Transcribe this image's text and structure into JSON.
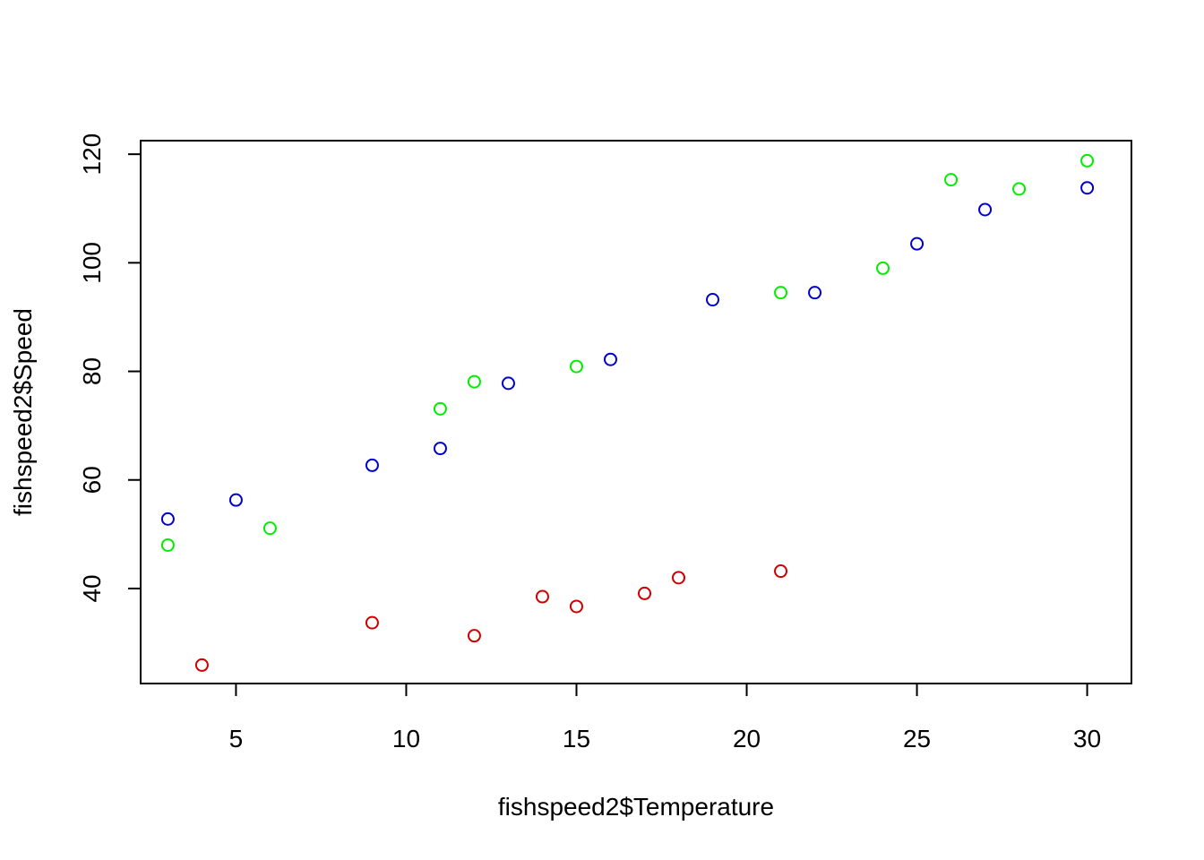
{
  "chart_data": {
    "type": "scatter",
    "title": "",
    "xlabel": "fishspeed2$Temperature",
    "ylabel": "fishspeed2$Speed",
    "xlim": [
      2.2,
      31.3
    ],
    "ylim": [
      22.5,
      122.5
    ],
    "x_ticks": [
      5,
      10,
      15,
      20,
      25,
      30
    ],
    "y_ticks": [
      40,
      60,
      80,
      100,
      120
    ],
    "grid": false,
    "legend": "none",
    "marker": "open-circle",
    "series": [
      {
        "color": "#0000cd",
        "points": [
          [
            3,
            52.8
          ],
          [
            5,
            56.3
          ],
          [
            9,
            62.7
          ],
          [
            11,
            65.8
          ],
          [
            13,
            77.8
          ],
          [
            16,
            82.2
          ],
          [
            19,
            93.2
          ],
          [
            22,
            94.5
          ],
          [
            25,
            103.5
          ],
          [
            27,
            109.8
          ],
          [
            30,
            113.8
          ]
        ]
      },
      {
        "color": "#00ee00",
        "points": [
          [
            3,
            48.0
          ],
          [
            6,
            51.1
          ],
          [
            11,
            73.1
          ],
          [
            12,
            78.1
          ],
          [
            15,
            80.9
          ],
          [
            21,
            94.5
          ],
          [
            24,
            99.0
          ],
          [
            26,
            115.3
          ],
          [
            28,
            113.6
          ],
          [
            30,
            118.8
          ]
        ]
      },
      {
        "color": "#cd0000",
        "points": [
          [
            4,
            25.9
          ],
          [
            9,
            33.7
          ],
          [
            12,
            31.3
          ],
          [
            14,
            38.5
          ],
          [
            15,
            36.7
          ],
          [
            17,
            39.1
          ],
          [
            18,
            42.0
          ],
          [
            21,
            43.2
          ]
        ]
      }
    ]
  }
}
